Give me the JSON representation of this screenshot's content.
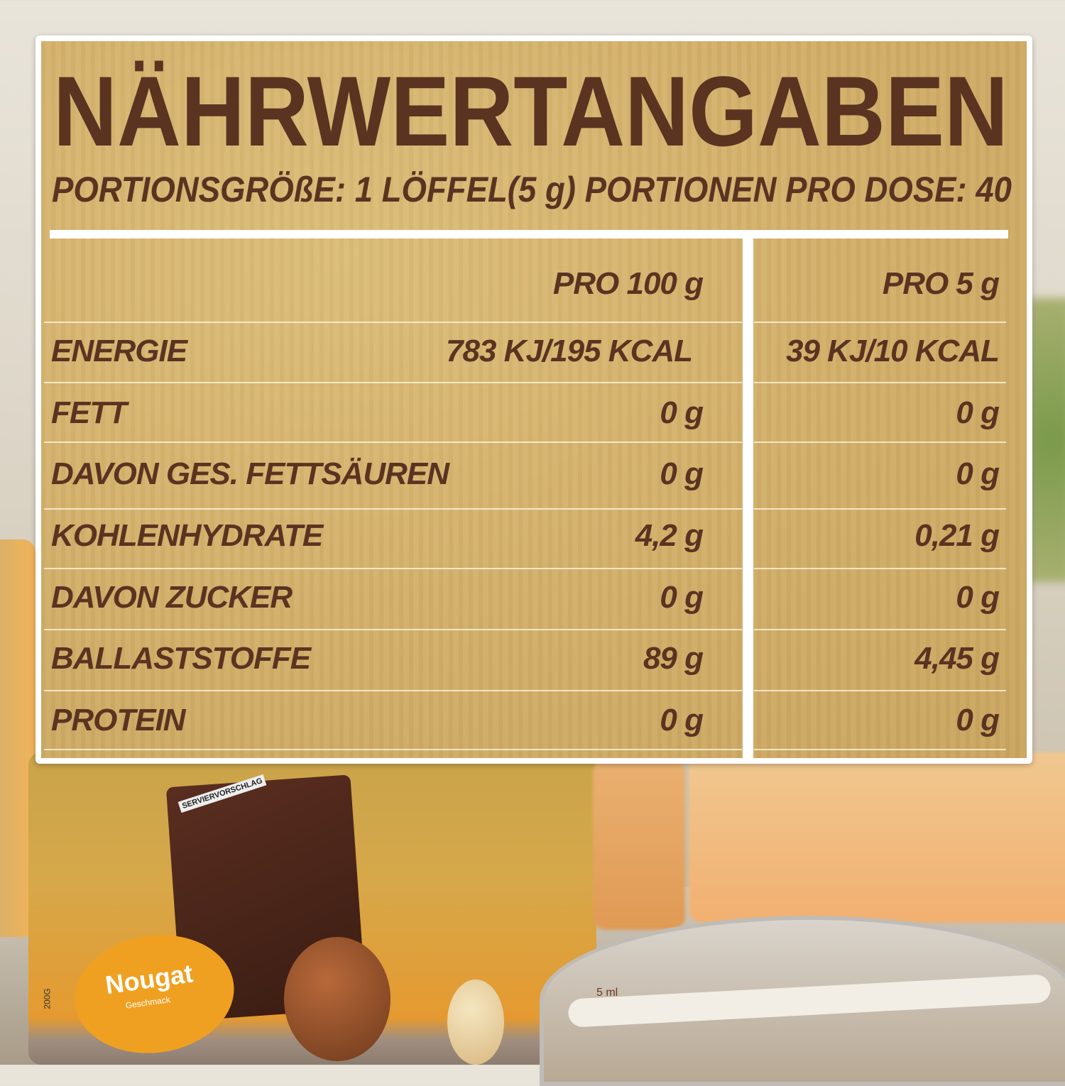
{
  "label": {
    "title": "NÄHRWERTANGABEN",
    "subtitle": "PORTIONSGRÖßE: 1 LÖFFEL(5 g) PORTIONEN PRO DOSE: 40",
    "columns": [
      "",
      "PRO 100 g",
      "PRO 5 g"
    ],
    "rows": [
      {
        "name": "ENERGIE",
        "per100": "783 KJ/195 KCAL",
        "per5": "39 KJ/10 KCAL"
      },
      {
        "name": "FETT",
        "per100": "0 g",
        "per5": "0 g"
      },
      {
        "name": "DAVON GES. FETTSÄUREN",
        "per100": "0 g",
        "per5": "0 g"
      },
      {
        "name": "KOHLENHYDRATE",
        "per100": "4,2 g",
        "per5": "0,21 g"
      },
      {
        "name": "DAVON ZUCKER",
        "per100": "0 g",
        "per5": "0 g"
      },
      {
        "name": "BALLASTSTOFFE",
        "per100": "89 g",
        "per5": "4,45 g"
      },
      {
        "name": "PROTEIN",
        "per100": "0 g",
        "per5": "0 g"
      }
    ]
  },
  "product": {
    "flavor": "Nougat",
    "flavor_sub": "Geschmack",
    "serving_note": "SERVIERVORSCHLAG",
    "weight": "200G",
    "scoop_mark": "5 ml"
  },
  "colors": {
    "text": "#5a3321",
    "kraft": "#d3b06a",
    "accent": "#f0a020"
  }
}
